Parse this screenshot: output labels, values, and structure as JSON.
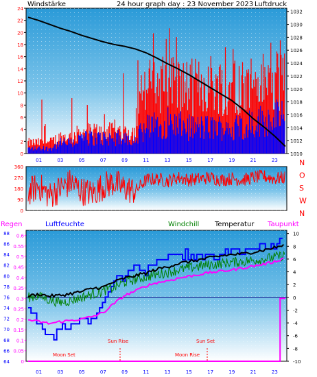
{
  "colors": {
    "wind": "#ff0000",
    "gust": "#0000ff",
    "pressure": "#000000",
    "dir": "#ff0000",
    "temp": "#000000",
    "windchill": "#008000",
    "dewpoint": "#ff00ff",
    "humidity": "#0000ff",
    "rain": "#ff00ff",
    "labels_red": "#ff0000",
    "title": "#0000ff",
    "axis_blue": "#0000ff"
  },
  "hours": [
    "01",
    "03",
    "05",
    "07",
    "09",
    "11",
    "13",
    "15",
    "17",
    "19",
    "21",
    "23"
  ],
  "chart_data": [
    {
      "type": "line",
      "title": "24 hour graph day : 23 November 2023",
      "left_label": "Windstärke",
      "right_label": "Luftdruck",
      "left_ticks": [
        "0",
        "2",
        "4",
        "6",
        "8",
        "10",
        "12",
        "14",
        "16",
        "18",
        "20",
        "22",
        "24"
      ],
      "right_ticks": [
        "1010",
        "1012",
        "1014",
        "1016",
        "1018",
        "1020",
        "1022",
        "1024",
        "1026",
        "1028",
        "1030",
        "1032"
      ],
      "ylim_left": [
        0,
        24
      ],
      "ylim_right": [
        1010,
        1032.5
      ],
      "series": [
        {
          "key": "pressure",
          "x": [
            0,
            1,
            2,
            3,
            4,
            5,
            6,
            7,
            8,
            9,
            10,
            11,
            12,
            13,
            14,
            15,
            16,
            17,
            18,
            19,
            20,
            21,
            22,
            23,
            24
          ],
          "values": [
            1031.1,
            1030.6,
            1030.0,
            1029.4,
            1028.9,
            1028.3,
            1027.8,
            1027.3,
            1026.9,
            1026.6,
            1026.2,
            1025.6,
            1024.8,
            1023.9,
            1023.1,
            1022.2,
            1021.2,
            1020.2,
            1019.2,
            1018.2,
            1016.9,
            1015.4,
            1014.1,
            1012.7,
            1011.1
          ]
        },
        {
          "key": "wind_envelope",
          "x": [
            0,
            2,
            3,
            4,
            5,
            7,
            9,
            10,
            10.5,
            11,
            13,
            15,
            17,
            19,
            21,
            23,
            24
          ],
          "values": [
            2,
            2,
            3,
            3,
            4,
            4,
            4,
            4,
            9,
            12,
            13,
            12,
            13,
            12,
            13,
            13,
            13
          ]
        },
        {
          "key": "gust_envelope",
          "x": [
            0,
            2,
            3,
            4,
            5,
            7,
            9,
            10,
            10.5,
            11,
            13,
            15,
            17,
            19,
            21,
            23,
            24
          ],
          "values": [
            1,
            1,
            2,
            2,
            3,
            3,
            3,
            3,
            4,
            5,
            6,
            5,
            5,
            5,
            6,
            7,
            7
          ]
        }
      ]
    },
    {
      "type": "scatter",
      "left_ticks": [
        "0",
        "90",
        "180",
        "270",
        "360"
      ],
      "right_labels": [
        "N",
        "W",
        "S",
        "O",
        "N"
      ],
      "ylim": [
        0,
        360
      ],
      "series": [
        {
          "key": "direction",
          "x": [
            0,
            1,
            2,
            3,
            4,
            5,
            6,
            7,
            8,
            9,
            10,
            11,
            12,
            13,
            14,
            15,
            16,
            17,
            18,
            19,
            20,
            21,
            22,
            23,
            24
          ],
          "values": [
            150,
            200,
            120,
            180,
            230,
            160,
            140,
            200,
            230,
            180,
            160,
            250,
            260,
            240,
            270,
            250,
            260,
            270,
            250,
            260,
            250,
            270,
            280,
            260,
            270
          ]
        }
      ]
    },
    {
      "type": "line",
      "top_labels": {
        "rain": "Regen",
        "humidity": "Luftfeuchte",
        "windchill": "Windchill",
        "temp": "Temperatur",
        "dewpoint": "Taupunkt"
      },
      "humidity_ticks": [
        "64",
        "66",
        "68",
        "70",
        "72",
        "74",
        "76",
        "78",
        "80",
        "82",
        "84",
        "86",
        "88"
      ],
      "rain_ticks": [
        "0",
        "0.05",
        "0.1",
        "0.15",
        "0.2",
        "0.25",
        "0.3",
        "0.35",
        "0.4",
        "0.45",
        "0.5",
        "0.55",
        "0.6"
      ],
      "temp_ticks": [
        "-10",
        "-8",
        "-6",
        "-4",
        "-2",
        "0",
        "2",
        "4",
        "6",
        "8",
        "10"
      ],
      "ylim_temp": [
        -10,
        10.5
      ],
      "annotations": {
        "moon_set": "Moon Set",
        "sun_rise": "Sun Rise",
        "sun_set": "Sun Set",
        "moon_rise": "Moon Rise"
      },
      "series": [
        {
          "key": "temperature",
          "x": [
            0,
            1,
            2,
            3,
            4,
            5,
            6,
            7,
            8,
            9,
            10,
            11,
            12,
            13,
            14,
            15,
            16,
            17,
            18,
            19,
            20,
            21,
            22,
            23,
            24
          ],
          "values": [
            0.2,
            0.5,
            0.2,
            0.3,
            0.6,
            0.9,
            1.4,
            1.6,
            2.4,
            3.0,
            3.4,
            3.8,
            4.4,
            4.8,
            5.3,
            5.6,
            5.9,
            6.2,
            6.5,
            6.7,
            6.8,
            7.1,
            7.4,
            7.8,
            8.2
          ]
        },
        {
          "key": "windchill",
          "x": [
            0,
            1,
            2,
            3,
            4,
            5,
            6,
            7,
            8,
            9,
            10,
            11,
            12,
            13,
            14,
            15,
            16,
            17,
            18,
            19,
            20,
            21,
            22,
            23,
            24
          ],
          "values": [
            0.0,
            0.2,
            -0.4,
            -0.8,
            -0.5,
            0.0,
            0.5,
            1.0,
            1.5,
            2.4,
            2.8,
            3.2,
            3.6,
            3.9,
            4.3,
            4.6,
            4.9,
            5.1,
            5.3,
            5.5,
            5.6,
            5.8,
            6.0,
            6.3,
            6.6
          ]
        },
        {
          "key": "dewpoint",
          "x": [
            0,
            1,
            2,
            3,
            4,
            5,
            6,
            7,
            8,
            9,
            10,
            11,
            12,
            13,
            14,
            15,
            16,
            17,
            18,
            19,
            20,
            21,
            22,
            23,
            24
          ],
          "values": [
            -3.5,
            -3.8,
            -4.1,
            -3.8,
            -3.6,
            -3.4,
            -3.0,
            -2.4,
            -1.0,
            0.3,
            1.0,
            1.8,
            2.3,
            2.6,
            3.0,
            3.3,
            3.6,
            3.9,
            4.1,
            4.3,
            4.6,
            4.9,
            5.2,
            5.6,
            6.2
          ]
        },
        {
          "key": "humidity",
          "x": [
            0,
            1,
            2,
            3,
            4,
            5,
            6,
            7,
            8,
            9,
            10,
            11,
            12,
            13,
            14,
            15,
            16,
            17,
            18,
            19,
            20,
            21,
            22,
            23,
            24
          ],
          "values": [
            74,
            71,
            68,
            70,
            71,
            71,
            72,
            75,
            79,
            80,
            82,
            81,
            83,
            84,
            84,
            84,
            84,
            84,
            84,
            85,
            85,
            85,
            85,
            86,
            87
          ]
        },
        {
          "key": "rain",
          "x": [
            0,
            23.5,
            23.5,
            24
          ],
          "values": [
            0,
            0,
            0.3,
            0.3
          ]
        }
      ]
    }
  ]
}
